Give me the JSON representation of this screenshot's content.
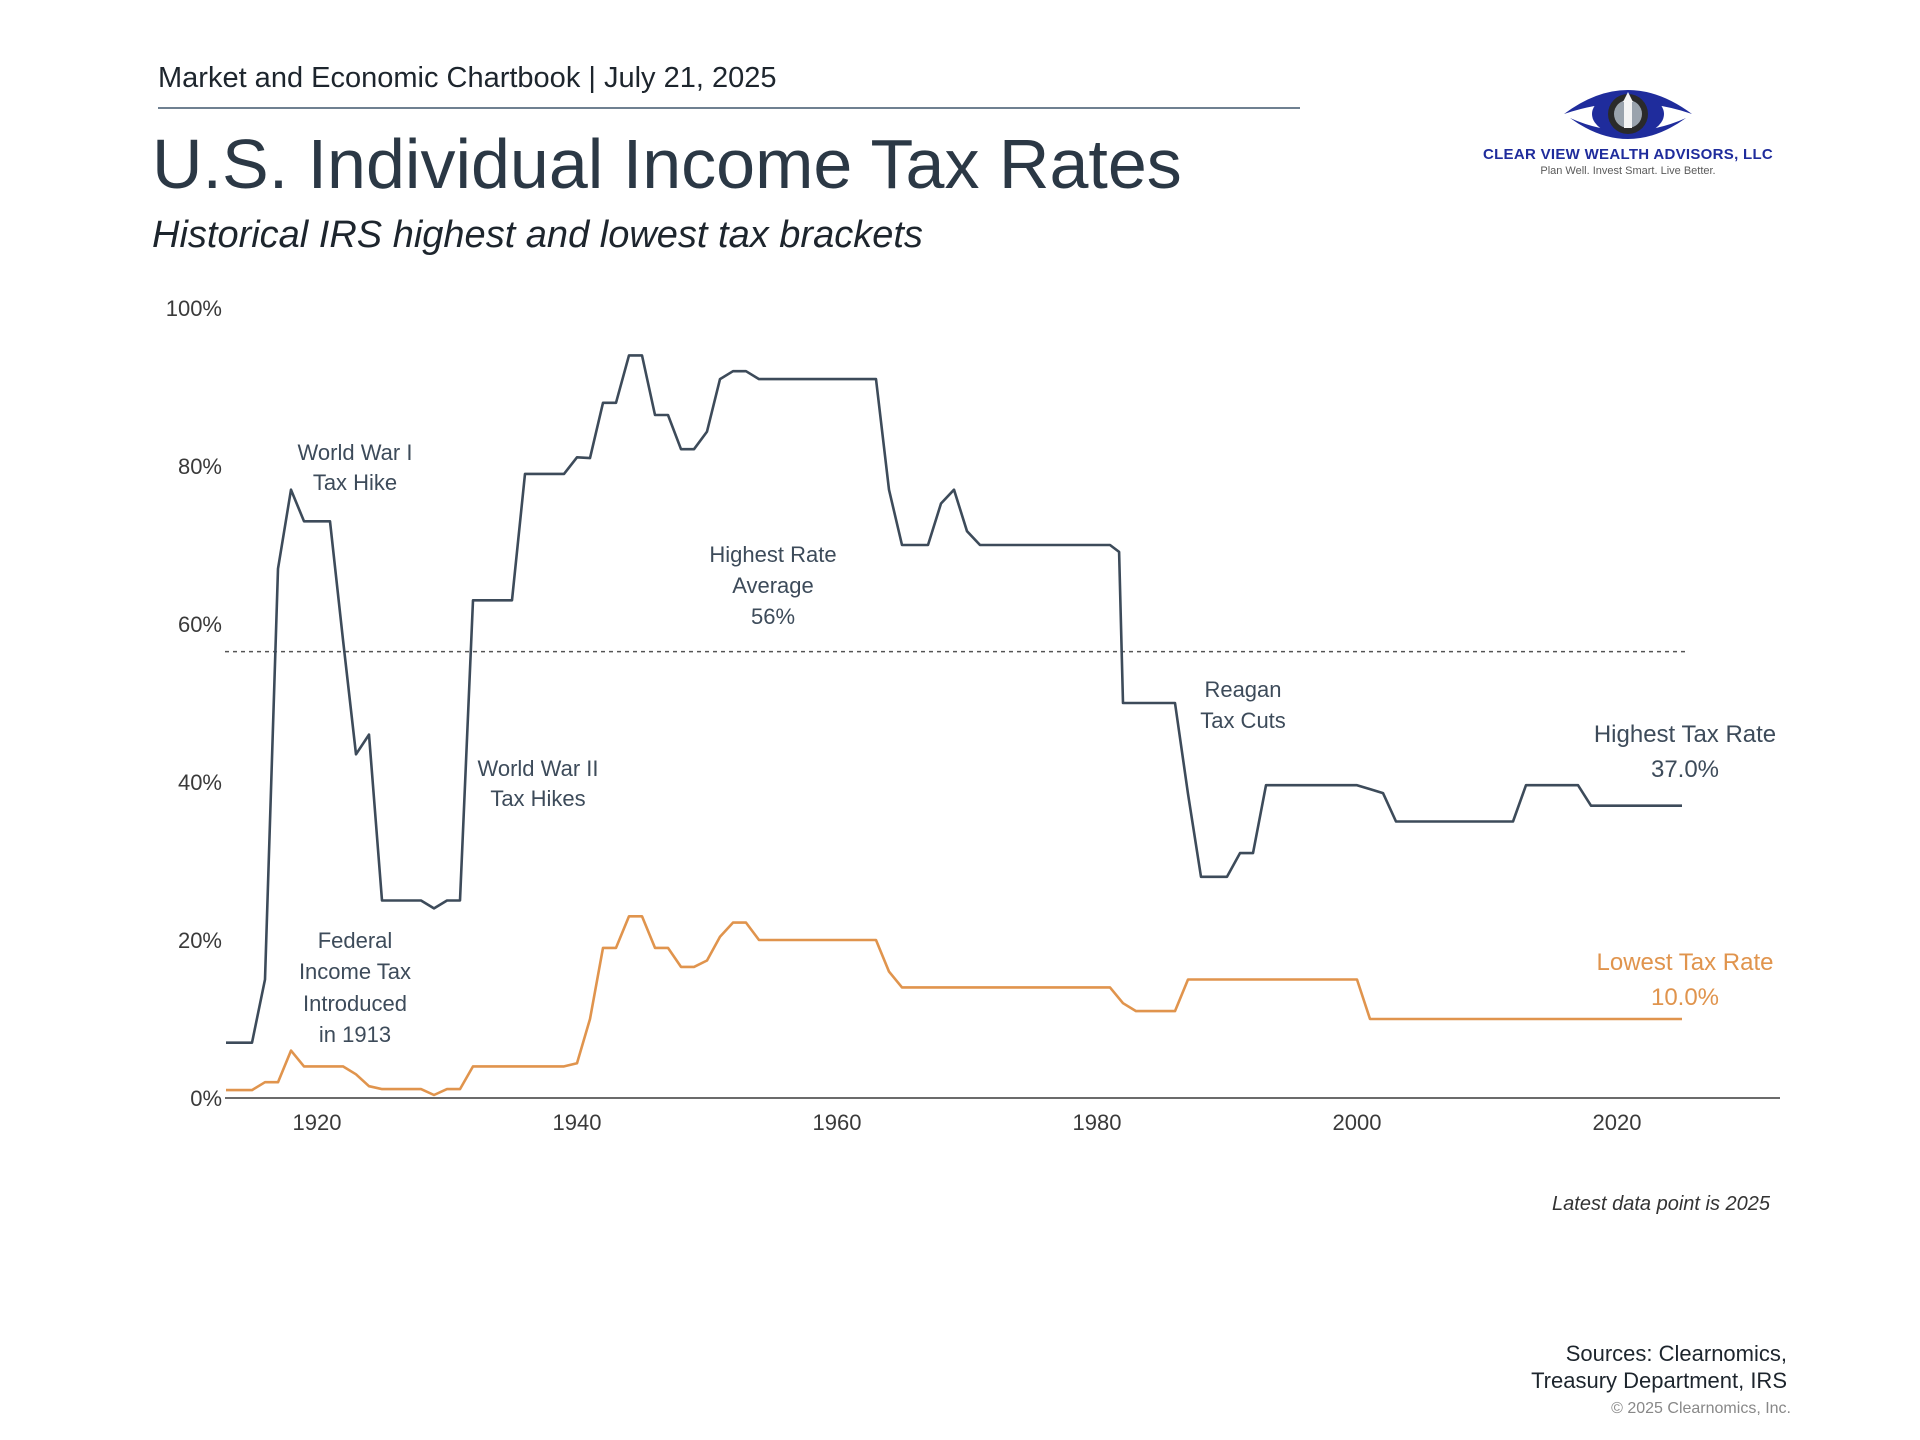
{
  "header": {
    "publication": "Market and Economic Chartbook | July 21, 2025",
    "title": "U.S. Individual Income Tax Rates",
    "subtitle": "Historical IRS highest and lowest tax brackets"
  },
  "logo": {
    "name": "CLEAR VIEW WEALTH ADVISORS, LLC",
    "tagline": "Plan Well. Invest Smart. Live Better.",
    "primary_color": "#1f2c9c"
  },
  "chart_data": {
    "type": "line",
    "ylim": [
      0,
      100
    ],
    "xlim": [
      1913,
      2032
    ],
    "y_ticks": [
      "0%",
      "20%",
      "40%",
      "60%",
      "80%",
      "100%"
    ],
    "x_ticks": [
      "1920",
      "1940",
      "1960",
      "1980",
      "2000",
      "2020"
    ],
    "grid": false,
    "series": [
      {
        "name": "Highest Tax Rate",
        "end_label": "37.0%",
        "color": "#3d4b5a",
        "points": [
          [
            1913,
            7
          ],
          [
            1915,
            7
          ],
          [
            1916,
            15
          ],
          [
            1917,
            67
          ],
          [
            1918,
            77
          ],
          [
            1919,
            73
          ],
          [
            1921,
            73
          ],
          [
            1922,
            58
          ],
          [
            1923,
            43.5
          ],
          [
            1924,
            46
          ],
          [
            1925,
            25
          ],
          [
            1928,
            25
          ],
          [
            1929,
            24
          ],
          [
            1930,
            25
          ],
          [
            1931,
            25
          ],
          [
            1932,
            63
          ],
          [
            1935,
            63
          ],
          [
            1936,
            79
          ],
          [
            1939,
            79
          ],
          [
            1940,
            81.1
          ],
          [
            1941,
            81
          ],
          [
            1942,
            88
          ],
          [
            1943,
            88
          ],
          [
            1944,
            94
          ],
          [
            1945,
            94
          ],
          [
            1946,
            86.45
          ],
          [
            1947,
            86.45
          ],
          [
            1948,
            82.13
          ],
          [
            1949,
            82.13
          ],
          [
            1950,
            84.36
          ],
          [
            1951,
            91
          ],
          [
            1952,
            92
          ],
          [
            1953,
            92
          ],
          [
            1954,
            91
          ],
          [
            1963,
            91
          ],
          [
            1964,
            77
          ],
          [
            1965,
            70
          ],
          [
            1967,
            70
          ],
          [
            1968,
            75.25
          ],
          [
            1969,
            77
          ],
          [
            1970,
            71.75
          ],
          [
            1971,
            70
          ],
          [
            1981,
            70
          ],
          [
            1981.7,
            69.13
          ],
          [
            1982,
            50
          ],
          [
            1986,
            50
          ],
          [
            1987,
            38.5
          ],
          [
            1988,
            28
          ],
          [
            1990,
            28
          ],
          [
            1991,
            31
          ],
          [
            1992,
            31
          ],
          [
            1993,
            39.6
          ],
          [
            2000,
            39.6
          ],
          [
            2001,
            39.1
          ],
          [
            2002,
            38.6
          ],
          [
            2003,
            35
          ],
          [
            2012,
            35
          ],
          [
            2013,
            39.6
          ],
          [
            2017,
            39.6
          ],
          [
            2018,
            37
          ],
          [
            2025,
            37
          ]
        ]
      },
      {
        "name": "Lowest Tax Rate",
        "end_label": "10.0%",
        "color": "#e0944d",
        "points": [
          [
            1913,
            1
          ],
          [
            1915,
            1
          ],
          [
            1916,
            2
          ],
          [
            1917,
            2
          ],
          [
            1918,
            6
          ],
          [
            1919,
            4
          ],
          [
            1922,
            4
          ],
          [
            1923,
            3
          ],
          [
            1924,
            1.5
          ],
          [
            1925,
            1.125
          ],
          [
            1928,
            1.125
          ],
          [
            1929,
            0.375
          ],
          [
            1930,
            1.125
          ],
          [
            1931,
            1.125
          ],
          [
            1932,
            4
          ],
          [
            1939,
            4
          ],
          [
            1940,
            4.4
          ],
          [
            1941,
            10
          ],
          [
            1942,
            19
          ],
          [
            1943,
            19
          ],
          [
            1944,
            23
          ],
          [
            1945,
            23
          ],
          [
            1946,
            19
          ],
          [
            1947,
            19
          ],
          [
            1948,
            16.6
          ],
          [
            1949,
            16.6
          ],
          [
            1950,
            17.4
          ],
          [
            1951,
            20.4
          ],
          [
            1952,
            22.2
          ],
          [
            1953,
            22.2
          ],
          [
            1954,
            20
          ],
          [
            1963,
            20
          ],
          [
            1964,
            16
          ],
          [
            1965,
            14
          ],
          [
            1981,
            14
          ],
          [
            1982,
            12
          ],
          [
            1983,
            11
          ],
          [
            1986,
            11
          ],
          [
            1987,
            15
          ],
          [
            2000,
            15
          ],
          [
            2001,
            10
          ],
          [
            2025,
            10
          ]
        ]
      }
    ],
    "average_line": {
      "value": 56.5,
      "style": "dotted"
    },
    "annotations": [
      {
        "id": "wwi",
        "lines": [
          "World War I",
          "Tax Hike"
        ]
      },
      {
        "id": "wwii",
        "lines": [
          "World War II",
          "Tax Hikes"
        ]
      },
      {
        "id": "avg",
        "lines": [
          "Highest Rate",
          "Average",
          "56%"
        ]
      },
      {
        "id": "reagan",
        "lines": [
          "Reagan",
          "Tax Cuts"
        ]
      },
      {
        "id": "fed",
        "lines": [
          "Federal",
          "Income Tax",
          "Introduced",
          "in 1913"
        ]
      }
    ]
  },
  "footer": {
    "note": "Latest data point is 2025",
    "sources_line1": "Sources: Clearnomics,",
    "sources_line2": "Treasury Department, IRS",
    "copyright": "© 2025 Clearnomics, Inc."
  }
}
